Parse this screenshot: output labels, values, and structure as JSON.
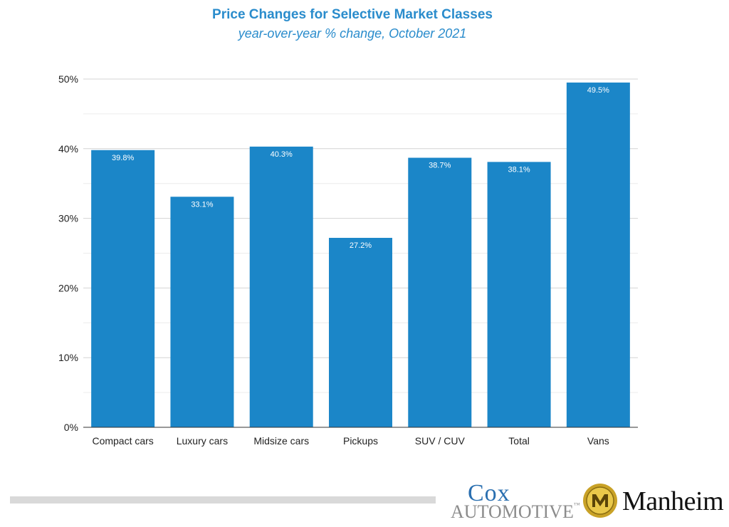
{
  "chart_data": {
    "type": "bar",
    "title": "Price Changes for Selective Market Classes",
    "subtitle": "year-over-year % change, October 2021",
    "categories": [
      "Compact cars",
      "Luxury cars",
      "Midsize cars",
      "Pickups",
      "SUV / CUV",
      "Total",
      "Vans"
    ],
    "values": [
      39.8,
      33.1,
      40.3,
      27.2,
      38.7,
      38.1,
      49.5
    ],
    "data_labels": [
      "39.8%",
      "33.1%",
      "40.3%",
      "27.2%",
      "38.7%",
      "38.1%",
      "49.5%"
    ],
    "y_ticks": [
      0,
      10,
      20,
      30,
      40,
      50
    ],
    "y_tick_labels": [
      "0%",
      "10%",
      "20%",
      "30%",
      "40%",
      "50%"
    ],
    "ylim": [
      0,
      50
    ],
    "grid": true,
    "minor_grid": true,
    "legend": "none",
    "bar_color": "#1b86c8"
  },
  "footer": {
    "cox_line1": "Cox",
    "cox_line2": "AUTOMOTIVE",
    "cox_tm": "™",
    "manheim": "Manheim"
  }
}
